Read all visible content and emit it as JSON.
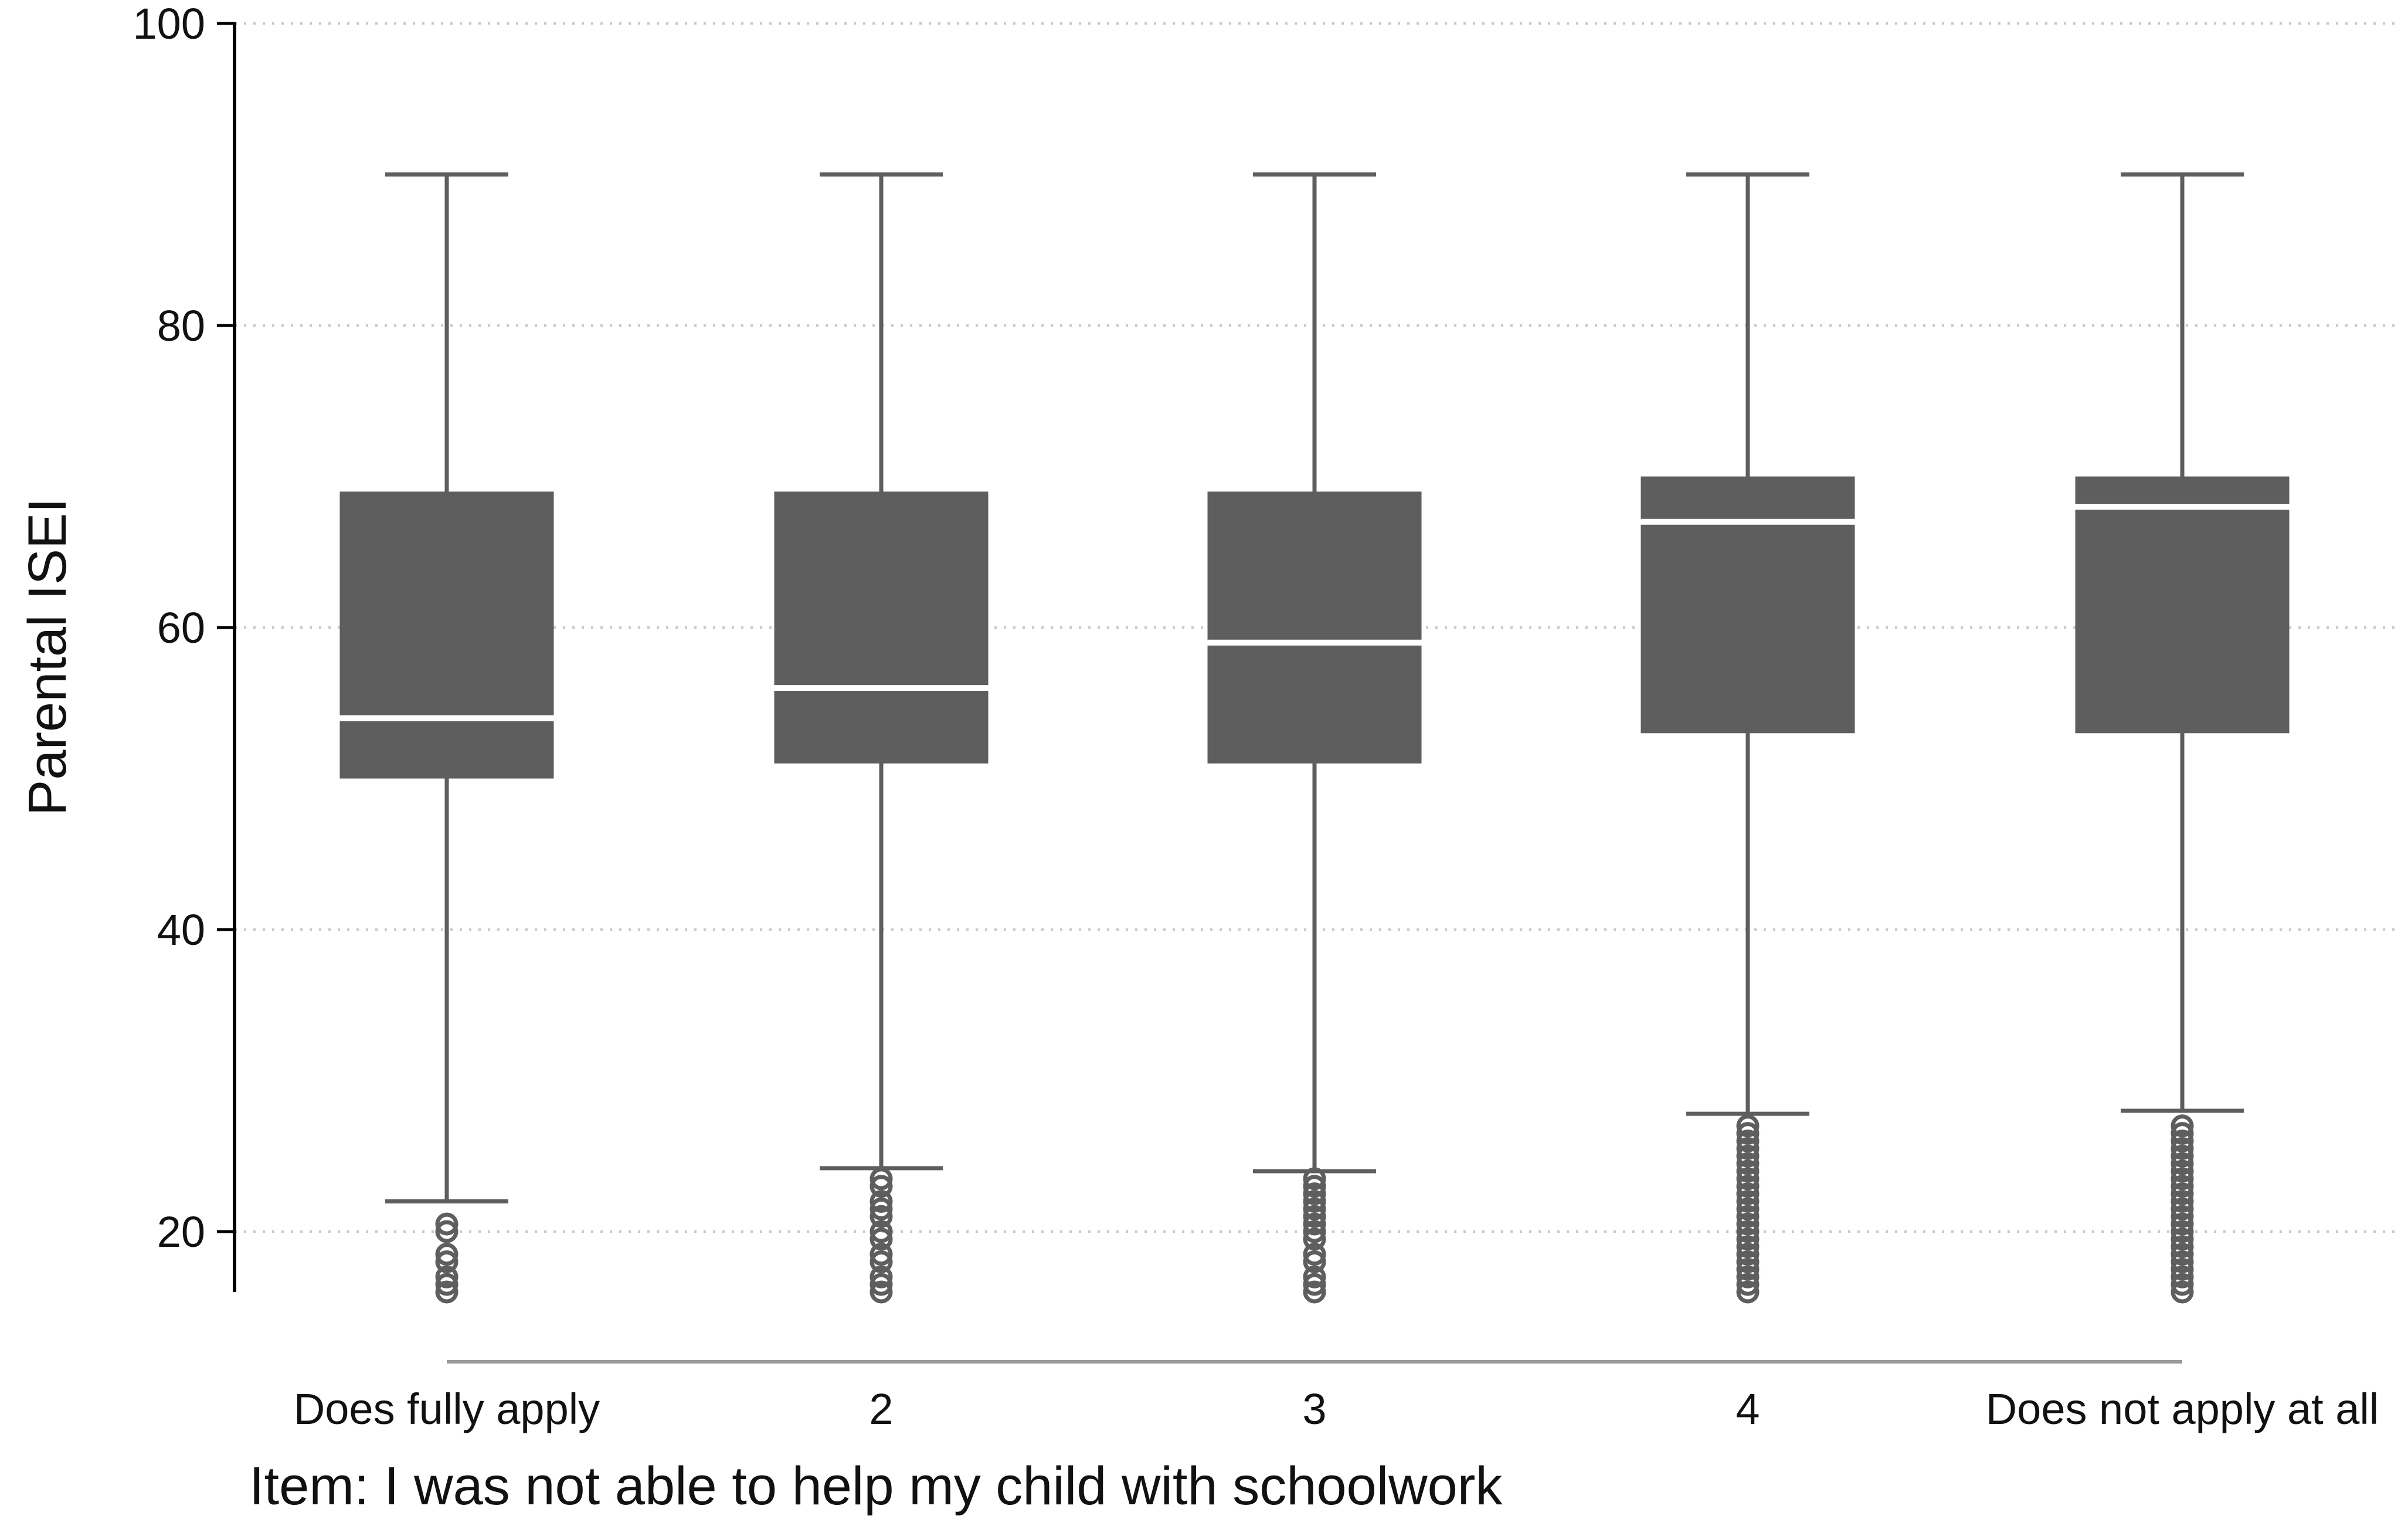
{
  "chart_data": {
    "type": "boxplot",
    "ylabel": "Parental ISEI",
    "xlabel": "Item: I was not able to help my child with schoolwork",
    "ylim": [
      16,
      100
    ],
    "yticks": [
      20,
      40,
      60,
      80,
      100
    ],
    "grid": true,
    "categories": [
      "Does fully apply",
      "2",
      "3",
      "4",
      "Does not apply at all"
    ],
    "boxes": [
      {
        "whisker_low": 22,
        "q1": 50,
        "median": 54,
        "q3": 69,
        "whisker_high": 90,
        "outliers": [
          16,
          16.5,
          17,
          18,
          18.5,
          20,
          20.5
        ]
      },
      {
        "whisker_low": 24.2,
        "q1": 51,
        "median": 56,
        "q3": 69,
        "whisker_high": 90,
        "outliers": [
          16,
          16.5,
          17,
          18,
          18.5,
          19.5,
          20,
          21,
          21.5,
          22,
          23,
          23.5
        ]
      },
      {
        "whisker_low": 24,
        "q1": 51,
        "median": 59,
        "q3": 69,
        "whisker_high": 90,
        "outliers": [
          16,
          16.5,
          17,
          18,
          18.5,
          19.5,
          20,
          20.5,
          21,
          21.5,
          22,
          22.5,
          23,
          23.5
        ]
      },
      {
        "whisker_low": 27.8,
        "q1": 53,
        "median": 67,
        "q3": 70,
        "whisker_high": 90,
        "outliers": [
          16,
          16.5,
          17,
          17.5,
          18,
          18.5,
          19,
          19.5,
          20,
          20.5,
          21,
          21.5,
          22,
          22.5,
          23,
          23.5,
          24,
          24.5,
          25,
          25.5,
          26,
          26.5,
          27
        ]
      },
      {
        "whisker_low": 28,
        "q1": 53,
        "median": 68,
        "q3": 70,
        "whisker_high": 90,
        "outliers": [
          16,
          16.5,
          17,
          17.5,
          18,
          18.5,
          19,
          19.5,
          20,
          20.5,
          21,
          21.5,
          22,
          22.5,
          23,
          23.5,
          24,
          24.5,
          25,
          25.5,
          26,
          26.5,
          27
        ]
      }
    ],
    "colors": {
      "box": "#5e5e5e",
      "median": "#ffffff",
      "whisker": "#5e5e5e",
      "axis": "#000000",
      "grid": "#c8c8c8"
    }
  }
}
